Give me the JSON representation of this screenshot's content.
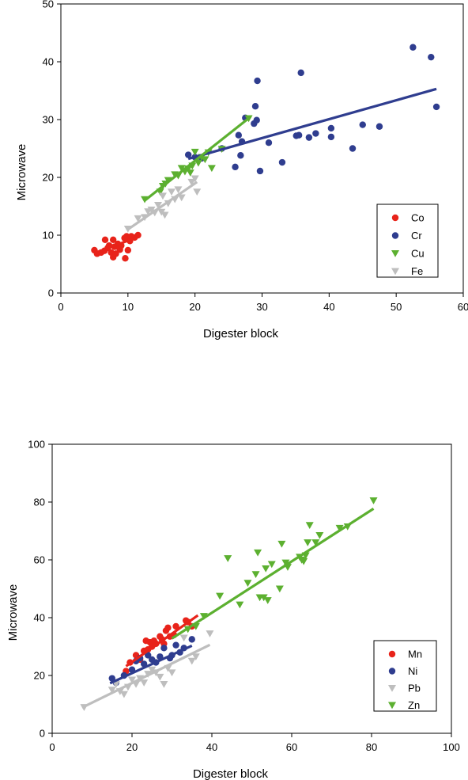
{
  "chart_data": [
    {
      "type": "scatter",
      "xlabel": "Digester block",
      "ylabel": "Microwave",
      "xlim": [
        0,
        60
      ],
      "ylim": [
        0,
        50
      ],
      "xticks": [
        "0",
        "10",
        "20",
        "30",
        "40",
        "50",
        "60"
      ],
      "yticks": [
        "0",
        "10",
        "20",
        "30",
        "40",
        "50"
      ],
      "grid": false,
      "legend_position": "bottom-right",
      "series": [
        {
          "name": "Co",
          "marker": "circle",
          "color": "#e8231a",
          "points": [
            [
              5,
              7.4
            ],
            [
              5.4,
              6.8
            ],
            [
              6,
              7.0
            ],
            [
              6.5,
              7.3
            ],
            [
              6.6,
              9.2
            ],
            [
              7,
              7.8
            ],
            [
              7.2,
              8.2
            ],
            [
              7.5,
              7.0
            ],
            [
              7.8,
              6.2
            ],
            [
              7.8,
              9.2
            ],
            [
              8,
              8.0
            ],
            [
              8.2,
              6.8
            ],
            [
              8.5,
              8.5
            ],
            [
              8.8,
              7.5
            ],
            [
              9,
              8.2
            ],
            [
              9.5,
              9.5
            ],
            [
              9.6,
              6.0
            ],
            [
              9.8,
              9.8
            ],
            [
              10,
              7.4
            ],
            [
              10.3,
              9.0
            ],
            [
              10.5,
              9.8
            ],
            [
              11,
              9.6
            ],
            [
              11.5,
              10.0
            ]
          ],
          "trend": [
            [
              5,
              6.9
            ],
            [
              11.5,
              9.7
            ]
          ]
        },
        {
          "name": "Cr",
          "marker": "circle",
          "color": "#2f3d8f",
          "points": [
            [
              19,
              23.9
            ],
            [
              20,
              23.5
            ],
            [
              21,
              23.3
            ],
            [
              24,
              25.0
            ],
            [
              26,
              21.8
            ],
            [
              26.5,
              27.3
            ],
            [
              26.8,
              23.8
            ],
            [
              27,
              26.2
            ],
            [
              27.5,
              30.3
            ],
            [
              28.8,
              29.3
            ],
            [
              29,
              32.3
            ],
            [
              29.2,
              29.9
            ],
            [
              29.3,
              36.7
            ],
            [
              29.7,
              21.1
            ],
            [
              31,
              26.0
            ],
            [
              33,
              22.6
            ],
            [
              35.1,
              27.2
            ],
            [
              35.5,
              27.3
            ],
            [
              35.8,
              38.1
            ],
            [
              37,
              26.9
            ],
            [
              38,
              27.6
            ],
            [
              40.3,
              28.5
            ],
            [
              40.3,
              27.0
            ],
            [
              43.5,
              25.0
            ],
            [
              45,
              29.1
            ],
            [
              47.5,
              28.8
            ],
            [
              52.5,
              42.5
            ],
            [
              55.2,
              40.8
            ],
            [
              56,
              32.2
            ]
          ],
          "trend": [
            [
              19,
              23.2
            ],
            [
              56,
              35.3
            ]
          ]
        },
        {
          "name": "Cu",
          "marker": "triangle-down",
          "color": "#5cb030",
          "points": [
            [
              12.5,
              16.2
            ],
            [
              14.8,
              17.5
            ],
            [
              15.2,
              18.5
            ],
            [
              15.6,
              18.9
            ],
            [
              16,
              19.5
            ],
            [
              17,
              20.5
            ],
            [
              17.5,
              20.3
            ],
            [
              18,
              21.6
            ],
            [
              18.5,
              21.0
            ],
            [
              19,
              21.5
            ],
            [
              19.3,
              20.8
            ],
            [
              19.6,
              22.0
            ],
            [
              20,
              24.4
            ],
            [
              20.5,
              22.5
            ],
            [
              21,
              23.5
            ],
            [
              21.5,
              23.1
            ],
            [
              22,
              24.3
            ],
            [
              22.5,
              21.6
            ],
            [
              24,
              24.9
            ],
            [
              28,
              30.2
            ]
          ],
          "trend": [
            [
              12.4,
              15.9
            ],
            [
              28.3,
              30.5
            ]
          ]
        },
        {
          "name": "Fe",
          "marker": "triangle-down",
          "color": "#bebebe",
          "points": [
            [
              10,
              11.1
            ],
            [
              11.5,
              12.9
            ],
            [
              12.5,
              13.1
            ],
            [
              13,
              14.1
            ],
            [
              13.5,
              14.4
            ],
            [
              14,
              13.9
            ],
            [
              14.5,
              15.2
            ],
            [
              15,
              14.0
            ],
            [
              15.2,
              16.8
            ],
            [
              15.5,
              13.5
            ],
            [
              16,
              15.5
            ],
            [
              16.5,
              17.5
            ],
            [
              17,
              16.2
            ],
            [
              17.5,
              17.9
            ],
            [
              18,
              16.5
            ],
            [
              19.5,
              19.2
            ],
            [
              20,
              19.8
            ],
            [
              20.3,
              17.5
            ]
          ],
          "trend": [
            [
              10,
              11.0
            ],
            [
              20.3,
              19.2
            ]
          ]
        }
      ]
    },
    {
      "type": "scatter",
      "xlabel": "Digester block",
      "ylabel": "Microwave",
      "xlim": [
        0,
        100
      ],
      "ylim": [
        0,
        100
      ],
      "xticks": [
        "0",
        "20",
        "40",
        "60",
        "80",
        "100"
      ],
      "yticks": [
        "0",
        "20",
        "40",
        "60",
        "80",
        "100"
      ],
      "grid": false,
      "legend_position": "bottom-right",
      "series": [
        {
          "name": "Mn",
          "marker": "circle",
          "color": "#e8231a",
          "points": [
            [
              18.5,
              21.5
            ],
            [
              19.5,
              24.5
            ],
            [
              21,
              27.0
            ],
            [
              22,
              25.5
            ],
            [
              23,
              28.5
            ],
            [
              23.5,
              32.0
            ],
            [
              24,
              29.0
            ],
            [
              24.5,
              31.5
            ],
            [
              25,
              30.0
            ],
            [
              25.5,
              32.0
            ],
            [
              26,
              31.0
            ],
            [
              27,
              33.5
            ],
            [
              27.5,
              32.5
            ],
            [
              28,
              31.0
            ],
            [
              28.5,
              35.5
            ],
            [
              29,
              36.5
            ],
            [
              29.5,
              33.5
            ],
            [
              30.5,
              34.0
            ],
            [
              31,
              37.0
            ],
            [
              33.5,
              39.0
            ],
            [
              34,
              38.5
            ],
            [
              35,
              37.0
            ]
          ],
          "trend": [
            [
              18.5,
              23.2
            ],
            [
              36.5,
              40.8
            ]
          ]
        },
        {
          "name": "Ni",
          "marker": "circle",
          "color": "#2f3d8f",
          "points": [
            [
              15,
              19.0
            ],
            [
              16,
              17.5
            ],
            [
              18,
              20.0
            ],
            [
              20,
              22.0
            ],
            [
              21,
              25.0
            ],
            [
              22,
              26.0
            ],
            [
              23,
              24.0
            ],
            [
              24,
              27.0
            ],
            [
              25,
              25.5
            ],
            [
              26,
              24.5
            ],
            [
              27,
              26.5
            ],
            [
              28,
              29.5
            ],
            [
              29.5,
              26.0
            ],
            [
              30,
              27.0
            ],
            [
              31,
              30.5
            ],
            [
              32,
              28.0
            ],
            [
              33,
              29.5
            ],
            [
              35,
              32.5
            ]
          ],
          "trend": [
            [
              14.5,
              17.3
            ],
            [
              35,
              30.3
            ]
          ]
        },
        {
          "name": "Pb",
          "marker": "triangle-down",
          "color": "#bebebe",
          "points": [
            [
              8,
              9.0
            ],
            [
              15,
              15.0
            ],
            [
              16,
              17.0
            ],
            [
              17,
              14.5
            ],
            [
              18,
              13.5
            ],
            [
              19,
              16.0
            ],
            [
              20,
              18.5
            ],
            [
              21,
              17.0
            ],
            [
              22,
              19.0
            ],
            [
              23,
              17.5
            ],
            [
              24,
              20.5
            ],
            [
              25,
              22.0
            ],
            [
              26,
              21.0
            ],
            [
              27,
              19.5
            ],
            [
              28,
              17.0
            ],
            [
              29,
              22.5
            ],
            [
              30,
              21.0
            ],
            [
              33,
              33.0
            ],
            [
              35,
              25.0
            ],
            [
              36,
              26.5
            ],
            [
              39.5,
              34.5
            ]
          ],
          "trend": [
            [
              7.5,
              8.9
            ],
            [
              39.5,
              30.6
            ]
          ]
        },
        {
          "name": "Zn",
          "marker": "triangle-down",
          "color": "#5cb030",
          "points": [
            [
              34,
              36.0
            ],
            [
              36,
              37.0
            ],
            [
              38,
              40.5
            ],
            [
              42,
              47.5
            ],
            [
              44,
              60.5
            ],
            [
              47,
              44.5
            ],
            [
              49,
              52.0
            ],
            [
              51,
              55.0
            ],
            [
              51.5,
              62.5
            ],
            [
              52,
              47.0
            ],
            [
              53,
              47.0
            ],
            [
              53.5,
              57.0
            ],
            [
              54,
              46.0
            ],
            [
              55,
              58.5
            ],
            [
              57,
              50.0
            ],
            [
              57.5,
              65.5
            ],
            [
              58.5,
              59.0
            ],
            [
              59,
              57.5
            ],
            [
              62,
              61.0
            ],
            [
              62.5,
              60.0
            ],
            [
              63,
              59.5
            ],
            [
              63.5,
              61.5
            ],
            [
              64,
              66.0
            ],
            [
              64.5,
              72.0
            ],
            [
              66,
              66.0
            ],
            [
              67,
              68.5
            ],
            [
              72,
              71.0
            ],
            [
              74,
              71.5
            ],
            [
              80.5,
              80.5
            ]
          ],
          "trend": [
            [
              30,
              32.8
            ],
            [
              80.5,
              77.7
            ]
          ]
        }
      ]
    }
  ]
}
